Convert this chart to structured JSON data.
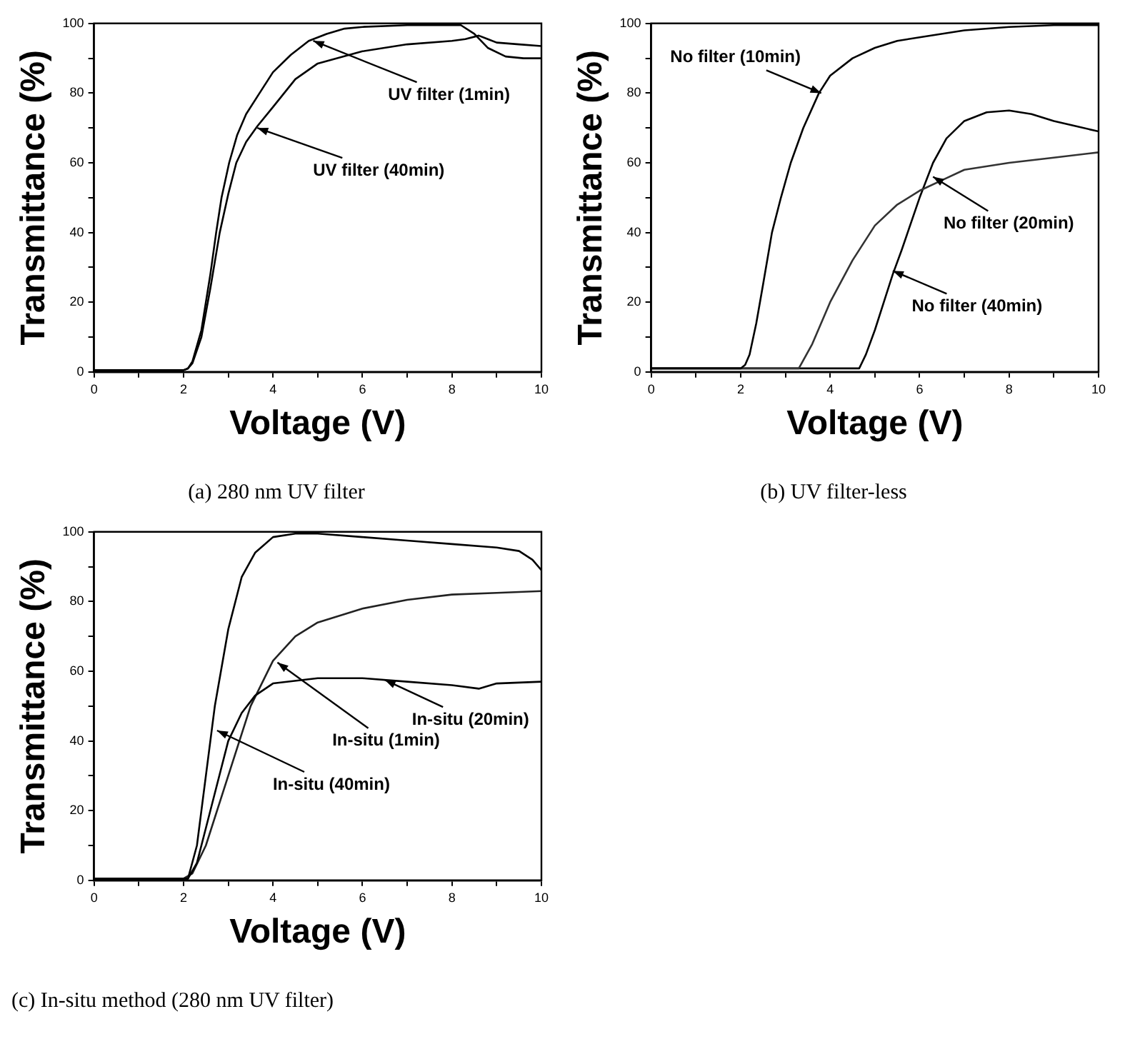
{
  "chart_data": [
    {
      "type": "line",
      "title": "(a) 280 nm UV filter",
      "xlabel": "Voltage (V)",
      "ylabel": "Transmittance (%)",
      "xlim": [
        0,
        10
      ],
      "ylim": [
        0,
        100
      ],
      "xticks": [
        0,
        {
          "value": 1,
          "label": null
        },
        2,
        {
          "value": 3,
          "label": null
        },
        4,
        {
          "value": 5,
          "label": null
        },
        6,
        {
          "value": 7,
          "label": null
        },
        8,
        {
          "value": 9,
          "label": null
        },
        10
      ],
      "yticks": [
        0,
        {
          "value": 10,
          "label": null
        },
        20,
        {
          "value": 30,
          "label": null
        },
        40,
        {
          "value": 50,
          "label": null
        },
        60,
        {
          "value": 70,
          "label": null
        },
        80,
        {
          "value": 90,
          "label": null
        },
        100
      ],
      "grid": false,
      "legend": false,
      "marker": "none",
      "line_style": "solid",
      "series": [
        {
          "color": "#000000",
          "x": [
            0,
            1,
            2,
            2.1,
            2.2,
            2.4,
            2.6,
            2.73,
            2.85,
            3.02,
            3.2,
            3.4,
            3.7,
            4,
            4.4,
            4.8,
            5.2,
            5.6,
            6,
            7,
            8,
            8.2,
            8.5,
            8.8,
            9.2,
            9.6,
            10
          ],
          "values": [
            0.5,
            0.5,
            0.5,
            1,
            3,
            12,
            28,
            40,
            50,
            60,
            68,
            74,
            80,
            86,
            91,
            95,
            97,
            98.5,
            99,
            99.5,
            99.5,
            99.5,
            97,
            93,
            90.5,
            90,
            90
          ]
        },
        {
          "color": "#000000",
          "x": [
            0,
            1,
            2,
            2.1,
            2.2,
            2.4,
            2.6,
            2.81,
            3,
            3.18,
            3.4,
            3.65,
            4,
            4.5,
            5,
            6,
            7,
            8,
            8.3,
            8.6,
            8.8,
            9,
            9.5,
            10
          ],
          "values": [
            0.5,
            0.5,
            0.5,
            1,
            2.5,
            10,
            24,
            40,
            51,
            60,
            66,
            70.5,
            76,
            84,
            88.5,
            92,
            94,
            95,
            95.5,
            96.5,
            95.5,
            94.5,
            94,
            93.5
          ]
        }
      ],
      "annotations": [
        {
          "text": "UV filter (1min)",
          "x": 4.9,
          "y": 95
        },
        {
          "text": "UV filter (40min)",
          "x": 3.65,
          "y": 70
        }
      ]
    },
    {
      "type": "line",
      "title": "(b) UV filter-less",
      "xlabel": "Voltage (V)",
      "ylabel": "Transmittance (%)",
      "xlim": [
        0,
        10
      ],
      "ylim": [
        0,
        100
      ],
      "xticks": [
        0,
        {
          "value": 1,
          "label": null
        },
        2,
        {
          "value": 3,
          "label": null
        },
        4,
        {
          "value": 5,
          "label": null
        },
        6,
        {
          "value": 7,
          "label": null
        },
        8,
        {
          "value": 9,
          "label": null
        },
        10
      ],
      "yticks": [
        0,
        {
          "value": 10,
          "label": null
        },
        20,
        {
          "value": 30,
          "label": null
        },
        40,
        {
          "value": 50,
          "label": null
        },
        60,
        {
          "value": 70,
          "label": null
        },
        80,
        {
          "value": 90,
          "label": null
        },
        100
      ],
      "grid": false,
      "legend": false,
      "marker": "none",
      "line_style": "solid",
      "series": [
        {
          "color": "#000000",
          "x": [
            0,
            1,
            2,
            2.1,
            2.2,
            2.35,
            2.5,
            2.7,
            2.9,
            3.12,
            3.4,
            3.75,
            4,
            4.5,
            5,
            5.5,
            6,
            7,
            8,
            9,
            10
          ],
          "values": [
            1,
            1,
            1,
            2,
            5,
            14,
            25,
            40,
            50,
            60,
            70,
            80,
            85,
            90,
            93,
            95,
            96,
            98,
            99,
            99.5,
            99.5
          ]
        },
        {
          "color": "#333333",
          "x": [
            0,
            1,
            2,
            3,
            3.3,
            3.6,
            4,
            4.5,
            5,
            5.5,
            6,
            6.5,
            7,
            8,
            9,
            10
          ],
          "values": [
            1,
            1,
            1,
            1,
            1,
            8,
            20,
            32,
            42,
            48,
            52,
            55,
            58,
            60,
            61.5,
            63
          ]
        },
        {
          "color": "#000000",
          "x": [
            0,
            1,
            2,
            3,
            4,
            4.65,
            4.8,
            5,
            5.2,
            5.4,
            5.6,
            6,
            6.3,
            6.6,
            7,
            7.5,
            8,
            8.5,
            9,
            9.5,
            10
          ],
          "values": [
            1,
            1,
            1,
            1,
            1,
            1,
            5,
            12,
            20,
            28,
            35,
            50,
            60,
            67,
            72,
            74.5,
            75,
            74,
            72,
            70.5,
            69
          ]
        }
      ],
      "annotations": [
        {
          "text": "No filter (10min)",
          "x": 3.8,
          "y": 80
        },
        {
          "text": "No filter (20min)",
          "x": 6.3,
          "y": 56
        },
        {
          "text": "No filter (40min)",
          "x": 5.4,
          "y": 29
        }
      ]
    },
    {
      "type": "line",
      "title": "(c) In-situ method (280 nm UV filter)",
      "xlabel": "Voltage (V)",
      "ylabel": "Transmittance (%)",
      "xlim": [
        0,
        10
      ],
      "ylim": [
        0,
        100
      ],
      "xticks": [
        0,
        {
          "value": 1,
          "label": null
        },
        2,
        {
          "value": 3,
          "label": null
        },
        4,
        {
          "value": 5,
          "label": null
        },
        6,
        {
          "value": 7,
          "label": null
        },
        8,
        {
          "value": 9,
          "label": null
        },
        10
      ],
      "yticks": [
        0,
        {
          "value": 10,
          "label": null
        },
        20,
        {
          "value": 30,
          "label": null
        },
        40,
        {
          "value": 50,
          "label": null
        },
        60,
        {
          "value": 70,
          "label": null
        },
        80,
        {
          "value": 90,
          "label": null
        },
        100
      ],
      "grid": false,
      "legend": false,
      "marker": "none",
      "line_style": "solid",
      "series": [
        {
          "color": "#000000",
          "x": [
            0,
            1,
            2,
            2.1,
            2.3,
            2.5,
            2.7,
            3,
            3.3,
            3.6,
            4,
            4.5,
            5,
            6,
            7,
            8,
            9,
            9.5,
            9.8,
            10
          ],
          "values": [
            0.5,
            0.5,
            0.5,
            0.5,
            10,
            30,
            50,
            72,
            87,
            94,
            98.5,
            99.5,
            99.5,
            98.5,
            97.5,
            96.5,
            95.5,
            94.5,
            92,
            89
          ]
        },
        {
          "color": "#000000",
          "x": [
            0,
            1,
            2,
            2.1,
            2.3,
            2.6,
            3,
            3.3,
            3.6,
            4,
            5,
            6,
            7,
            8,
            8.6,
            9,
            10
          ],
          "values": [
            0.5,
            0.5,
            0.5,
            0.5,
            5,
            20,
            40,
            48,
            53,
            56.5,
            58,
            58,
            57,
            56,
            55,
            56.5,
            57
          ]
        },
        {
          "color": "#222222",
          "x": [
            0,
            1,
            2,
            2.2,
            2.5,
            3,
            3.5,
            4,
            4.5,
            5,
            6,
            7,
            8,
            9,
            10
          ],
          "values": [
            0.5,
            0.5,
            0.5,
            2,
            10,
            30,
            50,
            63,
            70,
            74,
            78,
            80.5,
            82,
            82.5,
            83
          ]
        }
      ],
      "annotations": [
        {
          "text": "In-situ (20min)",
          "x": 6.5,
          "y": 57.5
        },
        {
          "text": "In-situ (1min)",
          "x": 4.1,
          "y": 62.5
        },
        {
          "text": "In-situ (40min)",
          "x": 2.75,
          "y": 43
        }
      ]
    }
  ]
}
